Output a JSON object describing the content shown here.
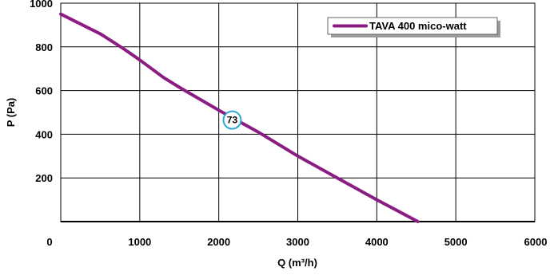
{
  "chart_data": {
    "type": "line",
    "xlabel": "Q (m³/h)",
    "ylabel": "P (Pa)",
    "xlim": [
      0,
      6000
    ],
    "ylim": [
      0,
      1000
    ],
    "x_ticks": [
      "0",
      "1000",
      "2000",
      "3000",
      "4000",
      "5000",
      "6000"
    ],
    "y_ticks": [
      "200",
      "400",
      "600",
      "800",
      "1000"
    ],
    "grid": true,
    "legend_position": "top-right",
    "series": [
      {
        "name": "TAVA 400 mico-watt",
        "color": "#8b1d82",
        "x": [
          0,
          500,
          800,
          1000,
          1300,
          1500,
          2000,
          2500,
          3000,
          3500,
          4000,
          4520
        ],
        "y": [
          950,
          860,
          790,
          740,
          660,
          615,
          510,
          410,
          300,
          200,
          100,
          0
        ]
      }
    ],
    "annotations": [
      {
        "text": "73",
        "x": 2170,
        "y": 465
      }
    ]
  }
}
